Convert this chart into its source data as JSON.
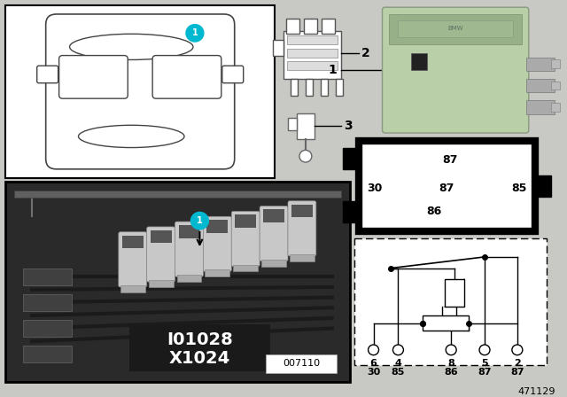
{
  "bg_color": "#c8c8c4",
  "title_ref": "471129",
  "part_ref1": "I01028",
  "part_ref2": "X1024",
  "photo_ref": "007110",
  "relay_color": "#b8cfa8",
  "relay_color2": "#a8bf98"
}
